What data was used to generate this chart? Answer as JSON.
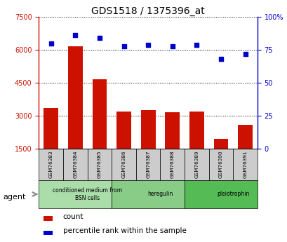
{
  "title": "GDS1518 / 1375396_at",
  "samples": [
    "GSM76383",
    "GSM76384",
    "GSM76385",
    "GSM76386",
    "GSM76387",
    "GSM76388",
    "GSM76389",
    "GSM76390",
    "GSM76391"
  ],
  "counts": [
    3350,
    6150,
    4650,
    3200,
    3250,
    3150,
    3200,
    1950,
    2600
  ],
  "percentiles": [
    80,
    86,
    84,
    78,
    79,
    78,
    79,
    68,
    72
  ],
  "ylim_left": [
    1500,
    7500
  ],
  "ylim_right": [
    0,
    100
  ],
  "yticks_left": [
    1500,
    3000,
    4500,
    6000,
    7500
  ],
  "yticks_right": [
    0,
    25,
    50,
    75,
    100
  ],
  "bar_color": "#cc1100",
  "dot_color": "#0000cc",
  "groups": [
    {
      "label": "conditioned medium from\nBSN cells",
      "start": 0,
      "end": 3,
      "color": "#aaddaa"
    },
    {
      "label": "heregulin",
      "start": 3,
      "end": 6,
      "color": "#88cc88"
    },
    {
      "label": "pleiotrophin",
      "start": 6,
      "end": 9,
      "color": "#55bb55"
    }
  ],
  "agent_label": "agent",
  "legend_count_label": "count",
  "legend_pct_label": "percentile rank within the sample",
  "bar_color_legend": "#cc1100",
  "dot_color_legend": "#0000cc",
  "left_axis_color": "#cc1100",
  "right_axis_color": "#0000cc",
  "grid_color": "#000000",
  "sample_box_color": "#cccccc",
  "xlim": [
    -0.5,
    8.5
  ]
}
